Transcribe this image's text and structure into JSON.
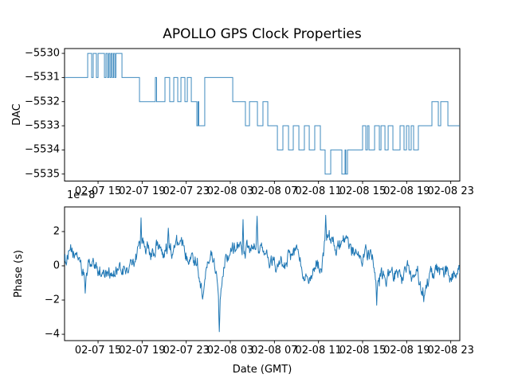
{
  "figure": {
    "title": "APOLLO GPS Clock Properties",
    "background": "#ffffff",
    "line_color": "#1f77b4",
    "frame_color": "#000000",
    "text_color": "#000000"
  },
  "chart_data": [
    {
      "type": "line",
      "name": "dac-vs-time",
      "drawstyle": "steps-post",
      "ylabel": "DAC",
      "grid": false,
      "legend": "none",
      "ylim": [
        -5535.29,
        -5529.8
      ],
      "yticks": {
        "values": [
          -5530,
          -5531,
          -5532,
          -5533,
          -5534,
          -5535
        ],
        "labels": [
          "−5530",
          "−5531",
          "−5532",
          "−5533",
          "−5534",
          "−5535"
        ]
      },
      "xlim_hours": [
        0,
        35.86
      ],
      "xticks": {
        "hours": [
          3.04,
          7.04,
          11.04,
          15.04,
          19.04,
          23.04,
          27.04,
          31.04,
          35.04
        ],
        "labels": [
          "02-07 15",
          "02-07 19",
          "02-07 23",
          "02-08 03",
          "02-08 07",
          "02-08 11",
          "02-08 15",
          "02-08 19",
          "02-08 23"
        ]
      },
      "steps": [
        [
          0.0,
          -5531
        ],
        [
          2.1,
          -5530
        ],
        [
          2.46,
          -5531
        ],
        [
          2.6,
          -5530
        ],
        [
          2.89,
          -5531
        ],
        [
          3.04,
          -5530
        ],
        [
          3.62,
          -5531
        ],
        [
          3.76,
          -5530
        ],
        [
          3.9,
          -5531
        ],
        [
          4.01,
          -5530
        ],
        [
          4.12,
          -5531
        ],
        [
          4.23,
          -5530
        ],
        [
          4.34,
          -5531
        ],
        [
          4.45,
          -5530
        ],
        [
          4.56,
          -5531
        ],
        [
          4.66,
          -5530
        ],
        [
          5.21,
          -5531
        ],
        [
          6.8,
          -5532
        ],
        [
          8.24,
          -5531
        ],
        [
          8.35,
          -5532
        ],
        [
          9.11,
          -5531
        ],
        [
          9.54,
          -5532
        ],
        [
          9.91,
          -5531
        ],
        [
          10.27,
          -5532
        ],
        [
          10.56,
          -5531
        ],
        [
          10.92,
          -5532
        ],
        [
          11.14,
          -5531
        ],
        [
          11.5,
          -5532
        ],
        [
          12.0,
          -5533
        ],
        [
          12.11,
          -5532
        ],
        [
          12.18,
          -5533
        ],
        [
          12.72,
          -5531
        ],
        [
          15.26,
          -5532
        ],
        [
          16.41,
          -5533
        ],
        [
          16.78,
          -5532
        ],
        [
          17.5,
          -5533
        ],
        [
          18.0,
          -5532
        ],
        [
          18.44,
          -5533
        ],
        [
          19.31,
          -5534
        ],
        [
          19.81,
          -5533
        ],
        [
          20.32,
          -5534
        ],
        [
          20.75,
          -5533
        ],
        [
          21.26,
          -5534
        ],
        [
          21.76,
          -5533
        ],
        [
          22.2,
          -5534
        ],
        [
          22.7,
          -5533
        ],
        [
          23.21,
          -5534
        ],
        [
          23.64,
          -5535
        ],
        [
          24.15,
          -5534
        ],
        [
          25.16,
          -5535
        ],
        [
          25.45,
          -5534
        ],
        [
          25.52,
          -5535
        ],
        [
          25.67,
          -5534
        ],
        [
          27.04,
          -5533
        ],
        [
          27.33,
          -5534
        ],
        [
          27.48,
          -5533
        ],
        [
          27.62,
          -5534
        ],
        [
          28.13,
          -5533
        ],
        [
          28.56,
          -5534
        ],
        [
          28.71,
          -5533
        ],
        [
          29.07,
          -5534
        ],
        [
          29.36,
          -5533
        ],
        [
          29.79,
          -5534
        ],
        [
          30.44,
          -5533
        ],
        [
          30.8,
          -5534
        ],
        [
          31.02,
          -5533
        ],
        [
          31.24,
          -5534
        ],
        [
          31.45,
          -5533
        ],
        [
          31.67,
          -5534
        ],
        [
          32.1,
          -5533
        ],
        [
          33.33,
          -5532
        ],
        [
          33.91,
          -5533
        ],
        [
          34.13,
          -5532
        ],
        [
          34.78,
          -5533
        ]
      ]
    },
    {
      "type": "line",
      "name": "phase-vs-time",
      "ylabel": "Phase (s)",
      "xlabel": "Date (GMT)",
      "offset_label": "1e−8",
      "units_scale": "1e-8 s",
      "grid": false,
      "legend": "none",
      "ylim": [
        -4.37,
        3.44
      ],
      "yticks": {
        "values": [
          2,
          0,
          -2,
          -4
        ],
        "labels": [
          "2",
          "0",
          "−2",
          "−4"
        ]
      },
      "xlim_hours": [
        0,
        35.86
      ],
      "xticks": {
        "hours": [
          3.04,
          7.04,
          11.04,
          15.04,
          19.04,
          23.04,
          27.04,
          31.04,
          35.04
        ],
        "labels": [
          "02-07 15",
          "02-07 19",
          "02-07 23",
          "02-08 03",
          "02-08 07",
          "02-08 11",
          "02-08 15",
          "02-08 19",
          "02-08 23"
        ]
      },
      "trend": [
        [
          0.0,
          0.5
        ],
        [
          0.65,
          0.6
        ],
        [
          1.37,
          0.4
        ],
        [
          1.88,
          -0.9
        ],
        [
          2.24,
          0.3
        ],
        [
          2.82,
          -0.2
        ],
        [
          3.54,
          -0.35
        ],
        [
          4.27,
          -0.2
        ],
        [
          4.84,
          -0.5
        ],
        [
          5.35,
          -0.3
        ],
        [
          5.93,
          -0.25
        ],
        [
          6.29,
          0.1
        ],
        [
          6.58,
          0.9
        ],
        [
          6.94,
          1.3
        ],
        [
          7.3,
          1.2
        ],
        [
          7.66,
          0.9
        ],
        [
          8.1,
          0.5
        ],
        [
          8.46,
          1.1
        ],
        [
          8.89,
          1.0
        ],
        [
          9.33,
          1.3
        ],
        [
          9.76,
          0.8
        ],
        [
          10.2,
          1.1
        ],
        [
          10.63,
          0.9
        ],
        [
          11.06,
          0.7
        ],
        [
          11.5,
          0.9
        ],
        [
          11.93,
          0.4
        ],
        [
          12.29,
          -0.5
        ],
        [
          12.51,
          -1.4
        ],
        [
          12.72,
          -0.5
        ],
        [
          12.94,
          0.6
        ],
        [
          13.16,
          0.8
        ],
        [
          13.45,
          0.3
        ],
        [
          13.74,
          -0.4
        ],
        [
          14.03,
          -1.8
        ],
        [
          14.24,
          -0.7
        ],
        [
          14.53,
          0.4
        ],
        [
          14.9,
          0.9
        ],
        [
          15.26,
          1.2
        ],
        [
          15.69,
          1.3
        ],
        [
          16.12,
          0.9
        ],
        [
          16.56,
          1.0
        ],
        [
          16.99,
          0.5
        ],
        [
          17.43,
          1.5
        ],
        [
          17.79,
          0.8
        ],
        [
          18.15,
          0.4
        ],
        [
          18.58,
          -0.1
        ],
        [
          19.02,
          0.3
        ],
        [
          19.45,
          -0.4
        ],
        [
          19.88,
          0.3
        ],
        [
          20.32,
          0.8
        ],
        [
          20.75,
          0.6
        ],
        [
          21.19,
          0.9
        ],
        [
          21.62,
          -0.2
        ],
        [
          22.06,
          0.1
        ],
        [
          22.49,
          -0.6
        ],
        [
          22.92,
          -0.2
        ],
        [
          23.35,
          0.2
        ],
        [
          23.79,
          1.5
        ],
        [
          24.22,
          1.2
        ],
        [
          24.66,
          1.0
        ],
        [
          25.09,
          1.1
        ],
        [
          25.52,
          0.8
        ],
        [
          25.96,
          0.7
        ],
        [
          26.39,
          0.9
        ],
        [
          26.82,
          0.6
        ],
        [
          27.26,
          0.8
        ],
        [
          27.69,
          0.5
        ],
        [
          28.12,
          0.1
        ],
        [
          28.56,
          -0.5
        ],
        [
          28.99,
          -0.6
        ],
        [
          29.43,
          -0.3
        ],
        [
          29.86,
          -0.5
        ],
        [
          30.3,
          -0.4
        ],
        [
          30.73,
          -0.6
        ],
        [
          31.16,
          -0.4
        ],
        [
          31.6,
          -0.5
        ],
        [
          32.03,
          -0.7
        ],
        [
          32.47,
          -1.3
        ],
        [
          32.9,
          -0.9
        ],
        [
          33.33,
          -0.5
        ],
        [
          33.77,
          -0.4
        ],
        [
          34.2,
          -0.6
        ],
        [
          34.63,
          -0.3
        ],
        [
          35.07,
          -0.6
        ],
        [
          35.5,
          -0.3
        ],
        [
          35.86,
          -0.5
        ]
      ],
      "spikes": [
        [
          1.88,
          -1.6
        ],
        [
          6.94,
          2.8
        ],
        [
          9.4,
          2.2
        ],
        [
          12.51,
          -1.95
        ],
        [
          14.03,
          -3.85
        ],
        [
          16.2,
          2.7
        ],
        [
          17.47,
          2.9
        ],
        [
          23.7,
          2.95
        ],
        [
          28.33,
          -2.3
        ],
        [
          32.57,
          -2.1
        ]
      ],
      "noise": {
        "seed": 1234,
        "ar": 0.8,
        "amp": 0.62,
        "jitter": 0.25,
        "n_points": 900
      }
    }
  ]
}
